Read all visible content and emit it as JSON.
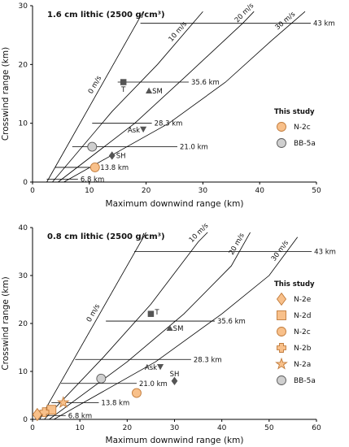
{
  "colors": {
    "axis": "#000000",
    "line": "#000000",
    "orange": "#f8c08a",
    "orange_edge": "#c07a3a",
    "gray": "#cfcfcf",
    "gray_edge": "#5a5a5a",
    "marker_dark": "#555555"
  },
  "chart_data": [
    {
      "type": "scatter",
      "title": "1.6 cm lithic (2500 g/cm³)",
      "xlabel": "Maximum downwind range (km)",
      "ylabel": "Crosswind range (km)",
      "xlim": [
        0,
        50
      ],
      "ylim": [
        0,
        30
      ],
      "xticks": [
        "0",
        "10",
        "20",
        "30",
        "40",
        "50"
      ],
      "yticks": [
        "0",
        "10",
        "20",
        "30"
      ],
      "grid": false,
      "legend_title": "This study",
      "legend": [
        {
          "name": "N-2c",
          "shape": "circle",
          "color": "orange"
        },
        {
          "name": "BB-5a",
          "shape": "circle",
          "color": "gray"
        }
      ],
      "wind_lines": [
        {
          "label": "0 m/s",
          "x0": 2.5,
          "points": [
            [
              2.5,
              0
            ],
            [
              19.5,
              29
            ]
          ]
        },
        {
          "label": "10 m/s",
          "x0": 3.5,
          "points": [
            [
              3.5,
              0
            ],
            [
              14,
              12
            ],
            [
              22,
              20
            ],
            [
              30,
              29
            ]
          ]
        },
        {
          "label": "20 m/s",
          "x0": 4.5,
          "points": [
            [
              4.5,
              0
            ],
            [
              18,
              10
            ],
            [
              27,
              18
            ],
            [
              37,
              27
            ],
            [
              39,
              29
            ]
          ]
        },
        {
          "label": "30 m/s",
          "x0": 5.5,
          "points": [
            [
              5.5,
              0
            ],
            [
              24,
              10
            ],
            [
              34,
              17
            ],
            [
              42,
              24
            ],
            [
              48,
              29
            ]
          ]
        }
      ],
      "range_lines": [
        {
          "label": "43 km",
          "y": 27,
          "x1": 19,
          "x2": 49
        },
        {
          "label": "35.6 km",
          "y": 17,
          "x1": 15,
          "x2": 27.5
        },
        {
          "label": "28.3 km",
          "y": 10,
          "x1": 10.5,
          "x2": 21
        },
        {
          "label": "21.0 km",
          "y": 6,
          "x1": 7,
          "x2": 25.5
        },
        {
          "label": "13.8 km",
          "y": 2.5,
          "x1": 4,
          "x2": 11.5
        },
        {
          "label": "6.8 km",
          "y": 0.5,
          "x1": 2.5,
          "x2": 8
        }
      ],
      "literature_points": [
        {
          "label": "T",
          "x": 16,
          "y": 17,
          "marker": "square"
        },
        {
          "label": "SM",
          "x": 20.5,
          "y": 15.5,
          "marker": "triangle"
        },
        {
          "label": "Ask",
          "x": 19.5,
          "y": 9,
          "marker": "triangle-down"
        },
        {
          "label": "SH",
          "x": 14,
          "y": 4.5,
          "marker": "diamond"
        }
      ],
      "study_points": [
        {
          "name": "BB-5a",
          "x": 10.5,
          "y": 6,
          "marker": "circle",
          "color": "gray"
        },
        {
          "name": "N-2c",
          "x": 11,
          "y": 2.5,
          "marker": "circle",
          "color": "orange"
        }
      ]
    },
    {
      "type": "scatter",
      "title": "0.8 cm lithic (2500 g/cm³)",
      "xlabel": "Maximum downwind range (km)",
      "ylabel": "Crosswind range (km)",
      "xlim": [
        0,
        60
      ],
      "ylim": [
        0,
        40
      ],
      "xticks": [
        "0",
        "10",
        "20",
        "30",
        "40",
        "50",
        "60"
      ],
      "yticks": [
        "0",
        "10",
        "20",
        "30",
        "40"
      ],
      "grid": false,
      "legend_title": "This study",
      "legend": [
        {
          "name": "N-2e",
          "shape": "diamond",
          "color": "orange"
        },
        {
          "name": "N-2d",
          "shape": "square",
          "color": "orange"
        },
        {
          "name": "N-2c",
          "shape": "circle",
          "color": "orange"
        },
        {
          "name": "N-2b",
          "shape": "cross",
          "color": "orange"
        },
        {
          "name": "N-2a",
          "shape": "star",
          "color": "orange"
        },
        {
          "name": "BB-5a",
          "shape": "circle",
          "color": "gray"
        }
      ],
      "wind_lines": [
        {
          "label": "0 m/s",
          "x0": 1.5,
          "points": [
            [
              1.5,
              0
            ],
            [
              24,
              39
            ]
          ]
        },
        {
          "label": "10 m/s",
          "x0": 2.5,
          "points": [
            [
              2.5,
              0
            ],
            [
              15,
              13
            ],
            [
              25,
              24
            ],
            [
              35,
              37
            ],
            [
              37,
              39
            ]
          ]
        },
        {
          "label": "20 m/s",
          "x0": 3.5,
          "points": [
            [
              3.5,
              0
            ],
            [
              20,
              12
            ],
            [
              32,
              22
            ],
            [
              42,
              32
            ],
            [
              46,
              39
            ]
          ]
        },
        {
          "label": "30 m/s",
          "x0": 4.5,
          "points": [
            [
              4.5,
              0
            ],
            [
              26,
              12
            ],
            [
              40,
              22
            ],
            [
              50,
              30
            ],
            [
              56,
              38
            ]
          ]
        }
      ],
      "range_lines": [
        {
          "label": "43 km",
          "y": 35,
          "x1": 21.5,
          "x2": 59
        },
        {
          "label": "35.6 km",
          "y": 20.5,
          "x1": 15.5,
          "x2": 38.5
        },
        {
          "label": "28.3 km",
          "y": 12.5,
          "x1": 9,
          "x2": 33.5
        },
        {
          "label": "21.0 km",
          "y": 7.5,
          "x1": 6,
          "x2": 22
        },
        {
          "label": "13.8 km",
          "y": 3.5,
          "x1": 4,
          "x2": 14
        },
        {
          "label": "6.8 km",
          "y": 0.8,
          "x1": 2,
          "x2": 7
        }
      ],
      "literature_points": [
        {
          "label": "T",
          "x": 25,
          "y": 22,
          "marker": "square"
        },
        {
          "label": "SM",
          "x": 29,
          "y": 19,
          "marker": "triangle"
        },
        {
          "label": "Ask",
          "x": 27,
          "y": 11,
          "marker": "triangle-down"
        },
        {
          "label": "SH",
          "x": 30,
          "y": 8,
          "marker": "diamond"
        }
      ],
      "study_points": [
        {
          "name": "BB-5a",
          "x": 14.5,
          "y": 8.5,
          "marker": "circle",
          "color": "gray"
        },
        {
          "name": "N-2c",
          "x": 22,
          "y": 5.5,
          "marker": "circle",
          "color": "orange"
        },
        {
          "name": "N-2a",
          "x": 6.5,
          "y": 3.5,
          "marker": "star",
          "color": "orange"
        },
        {
          "name": "N-2d",
          "x": 4,
          "y": 2,
          "marker": "square",
          "color": "orange"
        },
        {
          "name": "N-2b",
          "x": 2.5,
          "y": 1.5,
          "marker": "cross",
          "color": "orange"
        },
        {
          "name": "N-2e",
          "x": 1,
          "y": 1,
          "marker": "diamond",
          "color": "orange"
        }
      ]
    }
  ]
}
